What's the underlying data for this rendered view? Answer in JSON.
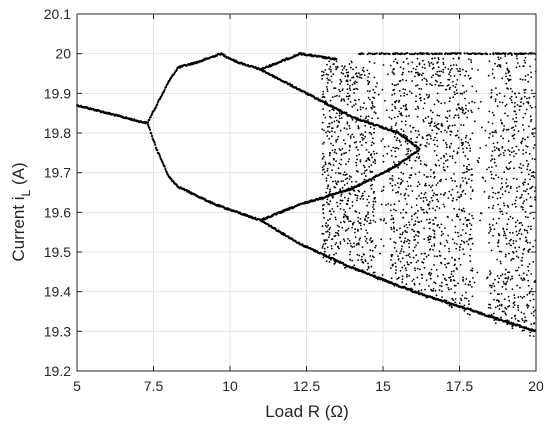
{
  "chart_data": {
    "type": "scatter",
    "title": "",
    "xlabel_main": "Load R (",
    "xlabel_unit": "Ω",
    "xlabel_close": ")",
    "ylabel_main": "Current i",
    "ylabel_sub": "L",
    "ylabel_unit": " (A)",
    "xlim": [
      5,
      20
    ],
    "ylim": [
      19.2,
      20.1
    ],
    "xticks": [
      5,
      7.5,
      10,
      12.5,
      15,
      17.5,
      20
    ],
    "xtick_labels": [
      "5",
      "7.5",
      "10",
      "12.5",
      "15",
      "17.5",
      "20"
    ],
    "yticks": [
      19.2,
      19.3,
      19.4,
      19.5,
      19.6,
      19.7,
      19.8,
      19.9,
      20.0,
      20.1
    ],
    "ytick_labels": [
      "19.2",
      "19.3",
      "19.4",
      "19.5",
      "19.6",
      "19.7",
      "19.8",
      "19.9",
      "20",
      "20.1"
    ],
    "grid": true,
    "marker_color": "#000000",
    "series": [
      {
        "branch": "period-1",
        "x": [
          5.0,
          6.0,
          7.0,
          7.3
        ],
        "y": [
          19.87,
          19.85,
          19.83,
          19.825
        ]
      },
      {
        "branch": "period-2-upper",
        "x": [
          7.3,
          7.6,
          8.0,
          8.3,
          9.0,
          9.7,
          10.2,
          11.0,
          12.3,
          13.5
        ],
        "y": [
          19.825,
          19.87,
          19.93,
          19.965,
          19.98,
          20.0,
          19.98,
          19.96,
          20.0,
          19.985
        ]
      },
      {
        "branch": "period-2-lower",
        "x": [
          7.3,
          7.6,
          8.0,
          8.3,
          9.5,
          11.0,
          12.3,
          14.0,
          16.0,
          18.0,
          20.0
        ],
        "y": [
          19.825,
          19.76,
          19.69,
          19.665,
          19.62,
          19.58,
          19.52,
          19.46,
          19.4,
          19.35,
          19.3
        ]
      },
      {
        "branch": "inner-upper",
        "x": [
          11.0,
          12.5,
          14.0,
          15.5,
          16.2
        ],
        "y": [
          19.96,
          19.9,
          19.84,
          19.8,
          19.76
        ]
      },
      {
        "branch": "inner-lower",
        "x": [
          11.0,
          12.3,
          14.0,
          15.5,
          16.2
        ],
        "y": [
          19.58,
          19.62,
          19.66,
          19.72,
          19.76
        ]
      }
    ],
    "chaotic_region": {
      "x_start": 13.0,
      "x_end": 20.0,
      "y_min": 19.28,
      "y_max": 20.0,
      "periodic_windows_x": [
        15.0,
        18.2
      ]
    }
  }
}
